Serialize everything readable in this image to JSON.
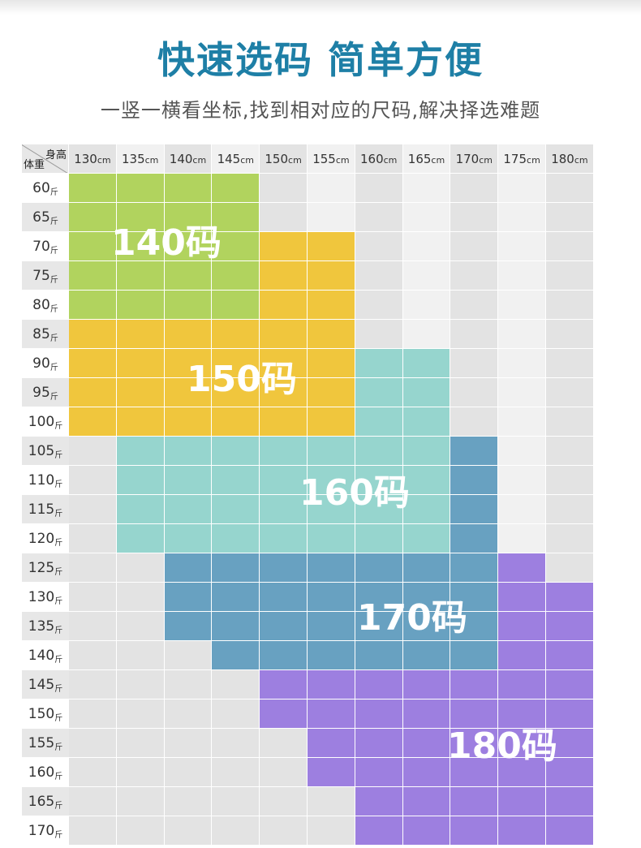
{
  "title": "快速选码 简单方便",
  "subtitle": "一竖一横看坐标,找到相对应的尺码,解决择选难题",
  "table": {
    "corner_height": "身高",
    "corner_weight": "体重",
    "height_unit": "cm",
    "weight_unit": "斤",
    "heights": [
      "130",
      "135",
      "140",
      "145",
      "150",
      "155",
      "160",
      "165",
      "170",
      "175",
      "180"
    ],
    "weights": [
      "60",
      "65",
      "70",
      "75",
      "80",
      "85",
      "90",
      "95",
      "100",
      "105",
      "110",
      "115",
      "120",
      "125",
      "130",
      "135",
      "140",
      "145",
      "150",
      "155",
      "160",
      "165",
      "170"
    ],
    "grid": [
      "AAAA0101010",
      "AAAA0101010",
      "AAAABB01010",
      "AAAABB01010",
      "AAAABB01010",
      "BBBBBB01010",
      "BBBBBBCC010",
      "BBBBBBCC010",
      "BBBBBBCC010",
      "0CCCCCCCD10",
      "0CCCCCCCD10",
      "0CCCCCCCD10",
      "0CCCCCCCD10",
      "00DDDDDDDE0",
      "00DDDDDDDEE",
      "00DDDDDDDEE",
      "000DDDDDDEE",
      "0000EEEEEEE",
      "0000EEEEEEE",
      "00000EEEEEE",
      "00000EEEEEE",
      "000000EEEEE",
      "000000EEEEE"
    ],
    "zones": [
      {
        "key": "A",
        "label": "140码",
        "color": "#b1d35e"
      },
      {
        "key": "B",
        "label": "150码",
        "color": "#f0c63d"
      },
      {
        "key": "C",
        "label": "160码",
        "color": "#96d5ce"
      },
      {
        "key": "D",
        "label": "170码",
        "color": "#68a1c1"
      },
      {
        "key": "E",
        "label": "180码",
        "color": "#9d7fe0"
      }
    ],
    "empty_colors": {
      "dark": "#e3e3e3",
      "light": "#f1f1f1",
      "row_header": "#e7e7e7"
    }
  }
}
